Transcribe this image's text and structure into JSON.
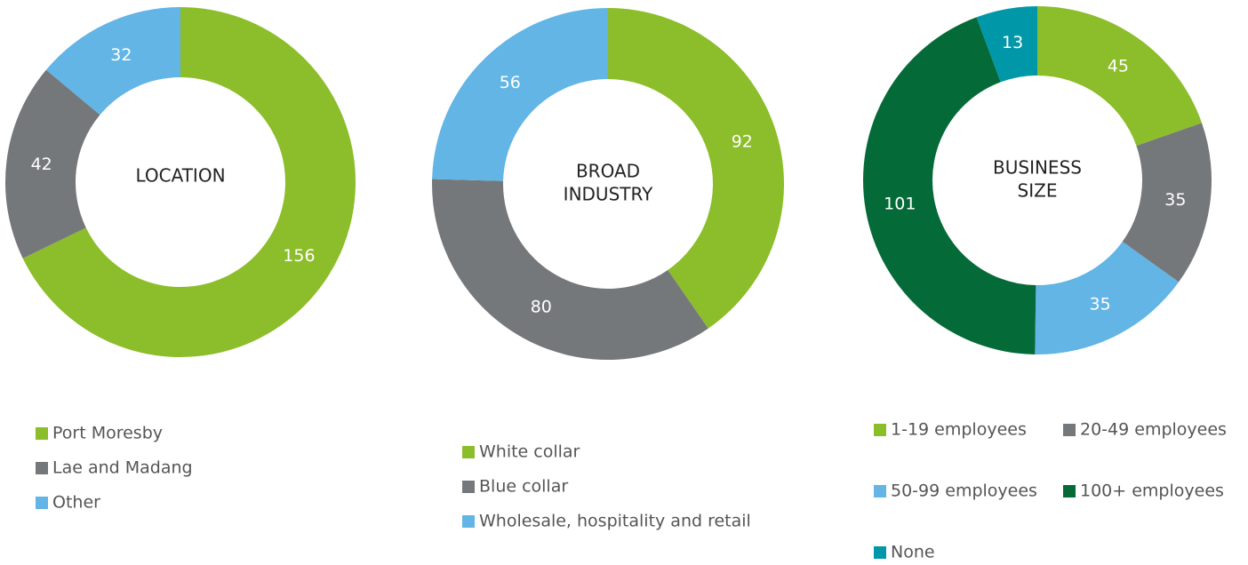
{
  "chart_data": [
    {
      "type": "pie",
      "donut": true,
      "title": [
        "LOCATION"
      ],
      "labels": [
        "Port Moresby",
        "Lae and Madang",
        "Other"
      ],
      "values": [
        156,
        42,
        32
      ],
      "colors": [
        "#8cbd2a",
        "#75787b",
        "#62b5e5"
      ]
    },
    {
      "type": "pie",
      "donut": true,
      "title": [
        "BROAD",
        "INDUSTRY"
      ],
      "labels": [
        "White collar",
        "Blue collar",
        "Wholesale, hospitality and retail"
      ],
      "values": [
        92,
        80,
        56
      ],
      "colors": [
        "#8cbd2a",
        "#75787b",
        "#62b5e5"
      ]
    },
    {
      "type": "pie",
      "donut": true,
      "title": [
        "BUSINESS",
        "SIZE"
      ],
      "labels": [
        "1-19 employees",
        "20-49 employees",
        "50-99 employees",
        "100+ employees",
        "None"
      ],
      "values": [
        45,
        35,
        35,
        101,
        13
      ],
      "colors": [
        "#8cbd2a",
        "#75787b",
        "#62b5e5",
        "#046a38",
        "#0097a9"
      ]
    }
  ]
}
